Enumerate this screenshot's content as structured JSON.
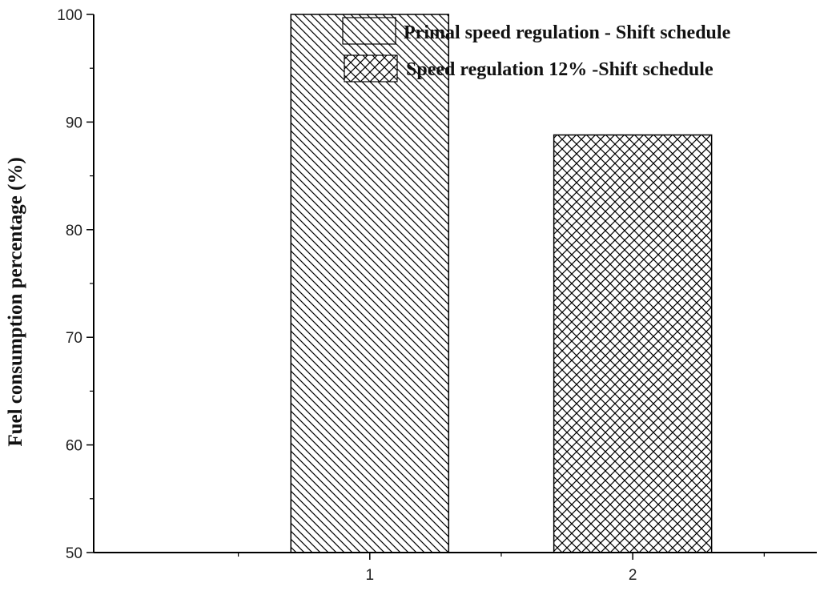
{
  "chart_data": {
    "type": "bar",
    "categories": [
      "1",
      "2"
    ],
    "series": [
      {
        "name": "Primal speed regulation - Shift schedule",
        "values": [
          100,
          null
        ],
        "pattern": "diagonal-hatch"
      },
      {
        "name": "Speed regulation 12% -Shift schedule",
        "values": [
          null,
          88.8
        ],
        "pattern": "cross-hatch"
      }
    ],
    "title": "",
    "xlabel": "",
    "ylabel": "Fuel consumption percentage (%)",
    "ylim": [
      50,
      100
    ],
    "yticks": [
      50,
      60,
      70,
      80,
      90,
      100
    ],
    "grid": false,
    "legend_position": "top-right",
    "colors": {
      "stroke": "#000000",
      "background": "#ffffff",
      "hatch": "#000000"
    }
  }
}
